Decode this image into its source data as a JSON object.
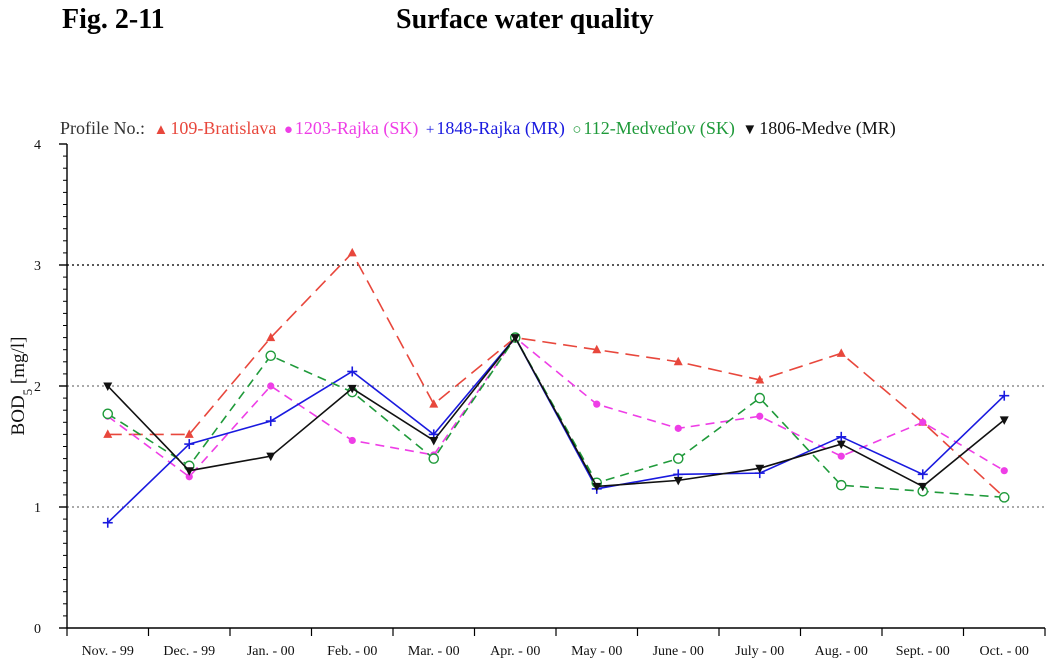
{
  "figure": {
    "label": "Fig. 2-11",
    "title": "Surface water quality"
  },
  "legend": {
    "title": "Profile No.:"
  },
  "chart_data": {
    "type": "line",
    "title": "Surface water quality",
    "ylabel": "BOD5 [mg/l]",
    "ylabel_main": "BOD",
    "ylabel_sub": "5",
    "ylabel_unit": " [mg/l]",
    "xlabel": "",
    "ylim": [
      0,
      4
    ],
    "yticks": [
      0,
      1,
      2,
      3,
      4
    ],
    "grid": "horizontal dotted lines at 1, 2, 3",
    "legend_position": "top",
    "categories": [
      "Nov. - 99",
      "Dec. - 99",
      "Jan. - 00",
      "Feb. - 00",
      "Mar. - 00",
      "Apr. - 00",
      "May - 00",
      "June - 00",
      "July - 00",
      "Aug. - 00",
      "Sept. - 00",
      "Oct. - 00"
    ],
    "series": [
      {
        "name": "109-Bratislava",
        "color": "#e8473c",
        "marker": "triangle-up",
        "dash": "long-dash",
        "values": [
          1.6,
          1.6,
          2.4,
          3.1,
          1.85,
          2.4,
          2.3,
          2.2,
          2.05,
          2.27,
          1.7,
          1.08
        ]
      },
      {
        "name": "1203-Rajka (SK)",
        "color": "#ee3ee6",
        "marker": "circle-filled",
        "dash": "dash",
        "values": [
          1.75,
          1.25,
          2.0,
          1.55,
          1.43,
          2.4,
          1.85,
          1.65,
          1.75,
          1.42,
          1.7,
          1.3
        ]
      },
      {
        "name": "1848-Rajka (MR)",
        "color": "#1a1adf",
        "marker": "plus",
        "dash": "solid",
        "values": [
          0.87,
          1.52,
          1.71,
          2.12,
          1.6,
          2.4,
          1.15,
          1.27,
          1.28,
          1.58,
          1.27,
          1.92
        ]
      },
      {
        "name": "112-Medveďov (SK)",
        "color": "#1f9a3a",
        "marker": "circle-open",
        "dash": "dash",
        "values": [
          1.77,
          1.34,
          2.25,
          1.95,
          1.4,
          2.4,
          1.2,
          1.4,
          1.9,
          1.18,
          1.13,
          1.08
        ]
      },
      {
        "name": "1806-Medve (MR)",
        "color": "#111111",
        "marker": "triangle-down",
        "dash": "solid",
        "values": [
          2.0,
          1.3,
          1.42,
          1.98,
          1.55,
          2.4,
          1.17,
          1.22,
          1.32,
          1.52,
          1.17,
          1.72
        ]
      }
    ]
  }
}
